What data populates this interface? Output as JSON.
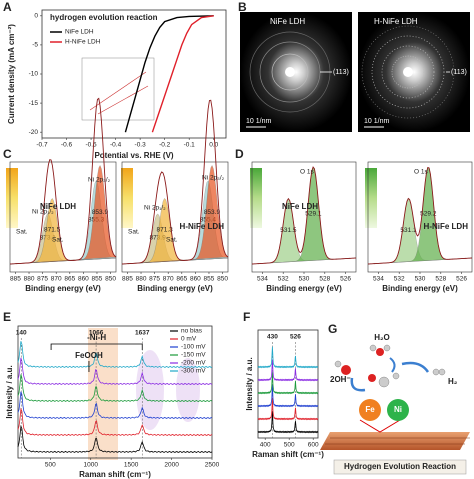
{
  "chart_data": [
    {
      "type": "line",
      "panel": "A",
      "title": "hydrogen evolution reaction",
      "xlabel": "Potential vs. RHE (V)",
      "ylabel": "Current density (mA cm⁻²)",
      "xlim": [
        -0.7,
        0.05
      ],
      "xticks": [
        -0.7,
        -0.6,
        -0.5,
        -0.4,
        -0.3,
        -0.2,
        -0.1,
        {
          "value": 0,
          "label": "0.0"
        }
      ],
      "ylim": [
        -21,
        1
      ],
      "yticks": [
        -20,
        -15,
        -10,
        -5,
        0
      ],
      "legend": "upper left",
      "series": [
        {
          "name": "NiFe LDH",
          "color": "#000000",
          "x": [
            -0.36,
            -0.34,
            -0.32,
            -0.3,
            -0.28,
            -0.26,
            -0.24,
            -0.22,
            -0.2,
            -0.15,
            -0.1,
            0.0
          ],
          "values": [
            -20,
            -17,
            -14,
            -11,
            -8,
            -5.5,
            -3.5,
            -2,
            -1,
            -0.3,
            -0.1,
            0
          ]
        },
        {
          "name": "H-NiFe LDH",
          "color": "#e0202a",
          "x": [
            -0.25,
            -0.23,
            -0.21,
            -0.19,
            -0.17,
            -0.15,
            -0.13,
            -0.11,
            -0.09,
            -0.05,
            0.0
          ],
          "values": [
            -20,
            -17.5,
            -15,
            -12.5,
            -10,
            -7.5,
            -5,
            -3,
            -1.5,
            -0.3,
            0
          ]
        }
      ]
    },
    {
      "type": "xps",
      "panel": "C",
      "subplots": [
        {
          "name": "NiFe LDH",
          "xlabel": "Binding energy (eV)",
          "xlim": [
            887,
            848
          ],
          "xticks": [
            885,
            880,
            875,
            870,
            865,
            860,
            855,
            850
          ],
          "peaks": [
            873.1,
            871.5,
            855.3,
            853.9
          ],
          "labels": [
            "Sat.",
            "Ni 2p₁/₂",
            "Sat.",
            "Ni 2p₃/₂"
          ]
        },
        {
          "name": "H-NiFe LDH",
          "xlabel": "Binding energy (eV)",
          "xlim": [
            887,
            848
          ],
          "xticks": [
            885,
            880,
            875,
            870,
            865,
            860,
            855,
            850
          ],
          "peaks": [
            873.9,
            871.3,
            855.4,
            853.9
          ],
          "labels": [
            "Sat.",
            "Ni 2p₁/₂",
            "Sat.",
            "Ni 2p₃/₂"
          ]
        }
      ]
    },
    {
      "type": "xps",
      "panel": "D",
      "subplots": [
        {
          "name": "NiFe LDH",
          "xlabel": "Binding energy (eV)",
          "xlim": [
            535,
            525
          ],
          "xticks": [
            534,
            532,
            530,
            528,
            526
          ],
          "peaks": [
            531.5,
            529.1
          ],
          "labels": [
            "O 1s"
          ]
        },
        {
          "name": "H-NiFe LDH",
          "xlabel": "Binding energy (eV)",
          "xlim": [
            535,
            525
          ],
          "xticks": [
            534,
            532,
            530,
            528,
            526
          ],
          "peaks": [
            531.1,
            529.2
          ],
          "labels": [
            "O 1s"
          ]
        }
      ]
    },
    {
      "type": "spectra",
      "panel": "E",
      "xlabel": "Raman shift (cm⁻¹)",
      "ylabel": "Intensity / a.u.",
      "xlim": [
        100,
        2500
      ],
      "xticks": [
        500,
        1000,
        1500,
        2000,
        2500
      ],
      "peaks": [
        140,
        1066,
        1637
      ],
      "annotations": [
        "FeOOH",
        "-Ni-H"
      ],
      "legend": "upper right",
      "series": [
        {
          "name": "no bias",
          "color": "#000000"
        },
        {
          "name": "0 mV",
          "color": "#e0202a"
        },
        {
          "name": "-100 mV",
          "color": "#1f3fd0"
        },
        {
          "name": "-150 mV",
          "color": "#1a9a3a"
        },
        {
          "name": "-200 mV",
          "color": "#8a2be2"
        },
        {
          "name": "-300 mV",
          "color": "#20a8c8"
        }
      ]
    },
    {
      "type": "spectra",
      "panel": "F",
      "xlabel": "Raman shift (cm⁻¹)",
      "ylabel": "Intensity / a.u.",
      "xlim": [
        370,
        620
      ],
      "xticks": [
        400,
        500,
        600
      ],
      "peaks": [
        430,
        526
      ],
      "series": [
        {
          "name": "no bias",
          "color": "#000000"
        },
        {
          "name": "0 mV",
          "color": "#e0202a"
        },
        {
          "name": "-100 mV",
          "color": "#1f3fd0"
        },
        {
          "name": "-150 mV",
          "color": "#1a9a3a"
        },
        {
          "name": "-200 mV",
          "color": "#8a2be2"
        },
        {
          "name": "-300 mV",
          "color": "#20a8c8"
        }
      ]
    }
  ],
  "diffraction": {
    "panel": "B",
    "images": [
      {
        "name": "NiFe LDH",
        "ring": "(113)",
        "scale": "10 1/nm"
      },
      {
        "name": "H-NiFe LDH",
        "ring": "(113)",
        "scale": "10 1/nm"
      }
    ]
  },
  "scheme": {
    "panel": "G",
    "water": "H₂O",
    "hydroxide": "2OH⁻",
    "hydrogen": "H₂",
    "metal1": "Fe",
    "metal2": "Ni",
    "caption": "Hydrogen Evolution Reaction"
  }
}
